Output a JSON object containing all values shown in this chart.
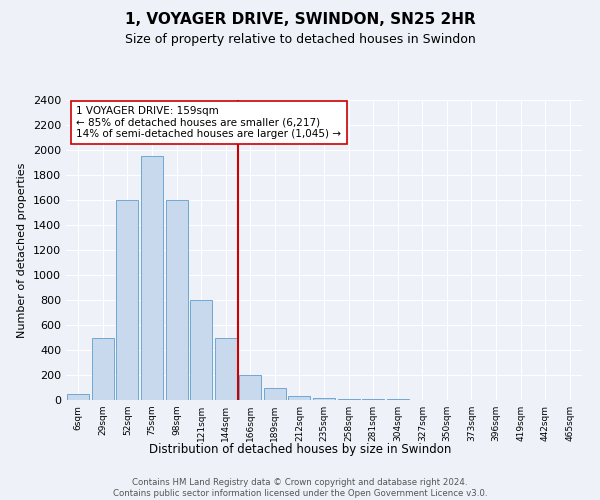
{
  "title": "1, VOYAGER DRIVE, SWINDON, SN25 2HR",
  "subtitle": "Size of property relative to detached houses in Swindon",
  "xlabel": "Distribution of detached houses by size in Swindon",
  "ylabel": "Number of detached properties",
  "categories": [
    "6sqm",
    "29sqm",
    "52sqm",
    "75sqm",
    "98sqm",
    "121sqm",
    "144sqm",
    "166sqm",
    "189sqm",
    "212sqm",
    "235sqm",
    "258sqm",
    "281sqm",
    "304sqm",
    "327sqm",
    "350sqm",
    "373sqm",
    "396sqm",
    "419sqm",
    "442sqm",
    "465sqm"
  ],
  "values": [
    50,
    500,
    1600,
    1950,
    1600,
    800,
    500,
    200,
    100,
    30,
    20,
    10,
    5,
    5,
    3,
    3,
    2,
    2,
    2,
    2,
    2
  ],
  "bar_color": "#c9d9ed",
  "bar_edge_color": "#6fa8d0",
  "vline_position": 6.5,
  "vline_color": "#cc0000",
  "annotation_text": "1 VOYAGER DRIVE: 159sqm\n← 85% of detached houses are smaller (6,217)\n14% of semi-detached houses are larger (1,045) →",
  "annotation_box_color": "#ffffff",
  "annotation_box_edge": "#cc0000",
  "ylim": [
    0,
    2400
  ],
  "yticks": [
    0,
    200,
    400,
    600,
    800,
    1000,
    1200,
    1400,
    1600,
    1800,
    2000,
    2200,
    2400
  ],
  "footer_line1": "Contains HM Land Registry data © Crown copyright and database right 2024.",
  "footer_line2": "Contains public sector information licensed under the Open Government Licence v3.0.",
  "bg_color": "#eef2f8"
}
